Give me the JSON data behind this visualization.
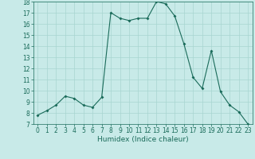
{
  "x": [
    0,
    1,
    2,
    3,
    4,
    5,
    6,
    7,
    8,
    9,
    10,
    11,
    12,
    13,
    14,
    15,
    16,
    17,
    18,
    19,
    20,
    21,
    22,
    23
  ],
  "y": [
    7.8,
    8.2,
    8.7,
    9.5,
    9.3,
    8.7,
    8.5,
    9.4,
    17.0,
    16.5,
    16.3,
    16.5,
    16.5,
    18.0,
    17.8,
    16.7,
    14.2,
    11.2,
    10.2,
    13.6,
    9.9,
    8.7,
    8.1,
    7.0
  ],
  "line_color": "#1a6b5a",
  "marker": "D",
  "marker_size": 2,
  "bg_color": "#c8eae8",
  "grid_color": "#a8d5d0",
  "xlabel": "Humidex (Indice chaleur)",
  "xlim": [
    -0.5,
    23.5
  ],
  "ylim": [
    7,
    18
  ],
  "yticks": [
    7,
    8,
    9,
    10,
    11,
    12,
    13,
    14,
    15,
    16,
    17,
    18
  ],
  "xticks": [
    0,
    1,
    2,
    3,
    4,
    5,
    6,
    7,
    8,
    9,
    10,
    11,
    12,
    13,
    14,
    15,
    16,
    17,
    18,
    19,
    20,
    21,
    22,
    23
  ],
  "label_color": "#1a6b5a",
  "tick_label_fontsize": 5.5,
  "xlabel_fontsize": 6.5,
  "linewidth": 0.8
}
